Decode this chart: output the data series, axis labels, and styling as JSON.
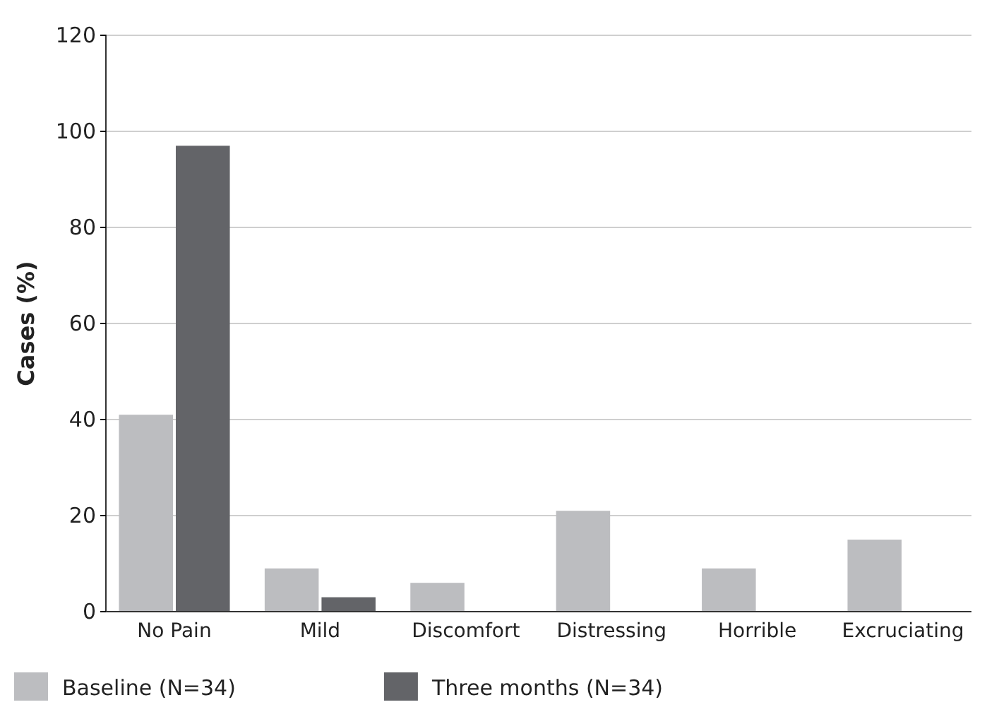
{
  "chart_data": {
    "type": "bar",
    "ylabel": "Cases (%)",
    "categories": [
      "No Pain",
      "Mild",
      "Discomfort",
      "Distressing",
      "Horrible",
      "Excruciating"
    ],
    "series": [
      {
        "name": "Baseline (N=34)",
        "color": "#bcbdc0",
        "values": [
          41,
          9,
          6,
          21,
          9,
          15
        ]
      },
      {
        "name": "Three months (N=34)",
        "color": "#636468",
        "values": [
          97,
          3,
          0,
          0,
          0,
          0
        ]
      }
    ],
    "ylim": [
      0,
      120
    ],
    "yticks": [
      0,
      20,
      40,
      60,
      80,
      100,
      120
    ],
    "grid": "y",
    "legend": "bottom"
  }
}
